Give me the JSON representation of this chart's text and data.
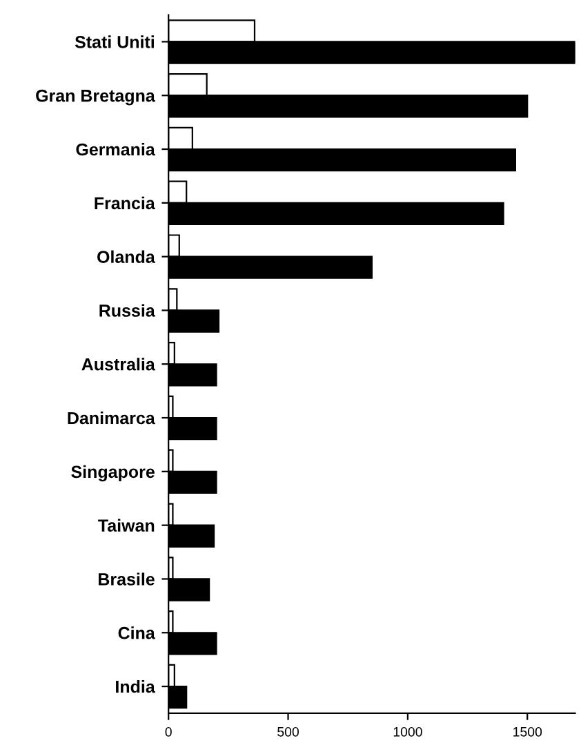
{
  "chart_data": {
    "type": "bar",
    "orientation": "horizontal",
    "categories": [
      "Stati Uniti",
      "Gran Bretagna",
      "Germania",
      "Francia",
      "Olanda",
      "Russia",
      "Australia",
      "Danimarca",
      "Singapore",
      "Taiwan",
      "Brasile",
      "Cina",
      "India"
    ],
    "series": [
      {
        "color": "#ffffff",
        "values": [
          360,
          160,
          100,
          75,
          45,
          35,
          25,
          18,
          18,
          18,
          18,
          18,
          25
        ]
      },
      {
        "color": "#000000",
        "values": [
          1700,
          1500,
          1450,
          1400,
          850,
          210,
          200,
          200,
          200,
          190,
          170,
          200,
          75
        ]
      }
    ],
    "xlim": [
      0,
      1700
    ],
    "xticks": [
      0,
      500,
      1000,
      1500
    ],
    "grid": false,
    "legend": false
  }
}
